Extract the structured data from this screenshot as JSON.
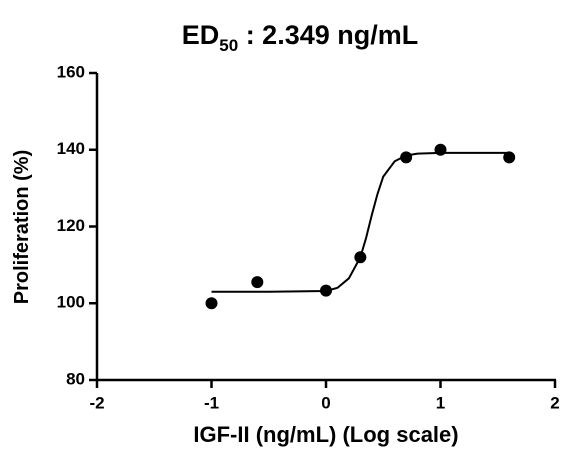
{
  "chart_data": {
    "type": "scatter",
    "title_parts": [
      "ED",
      "50",
      " : 2.349 ng/mL"
    ],
    "x_label": "IGF-II (ng/mL) (Log scale)",
    "y_label": "Proliferation (%)",
    "x": [
      -1,
      -0.6,
      0,
      0.3,
      0.7,
      1,
      1.6
    ],
    "values": [
      100,
      105.5,
      103.3,
      112,
      138,
      140,
      138
    ],
    "color": "#000000",
    "fit": {
      "x": [
        -1,
        -0.5,
        0,
        0.1,
        0.2,
        0.3,
        0.35,
        0.4,
        0.45,
        0.5,
        0.6,
        0.7,
        0.8,
        1,
        1.6
      ],
      "y": [
        103,
        103,
        103.2,
        104,
        106.5,
        112,
        117,
        123,
        128.5,
        133,
        137,
        138.5,
        139,
        139.2,
        139.2
      ]
    },
    "log_scale": true,
    "xlim": [
      -2,
      2
    ],
    "xticks": [
      -2,
      -1,
      0,
      1,
      2
    ],
    "ylim": [
      80,
      160
    ],
    "yticks": [
      80,
      100,
      120,
      140,
      160
    ],
    "grid": false
  }
}
